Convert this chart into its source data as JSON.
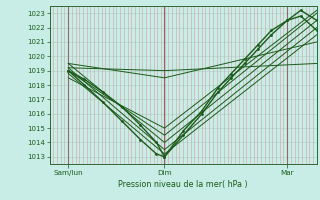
{
  "title": "Pression niveau de la mer( hPa )",
  "bg_color": "#c8ece6",
  "grid_color_v": "#d4a0a0",
  "grid_color_h": "#b0d8d0",
  "line_color": "#1a5c1a",
  "ylim": [
    1012.5,
    1023.5
  ],
  "yticks": [
    1013,
    1014,
    1015,
    1016,
    1017,
    1018,
    1019,
    1020,
    1021,
    1022,
    1023
  ],
  "xtick_labels": [
    "Sam/lun",
    "Dim",
    "Mar"
  ],
  "xtick_positions": [
    0.07,
    0.43,
    0.89
  ],
  "day_vlines": [
    0.07,
    0.43,
    0.89
  ],
  "num_vgrid": 72,
  "lines": [
    {
      "x": [
        0.07,
        0.13,
        0.2,
        0.27,
        0.34,
        0.4,
        0.43,
        0.5,
        0.57,
        0.63,
        0.68,
        0.73,
        0.78,
        0.83,
        0.89,
        0.94,
        1.0
      ],
      "y": [
        1019.0,
        1018.4,
        1017.5,
        1016.5,
        1015.2,
        1014.0,
        1013.0,
        1014.5,
        1016.0,
        1017.5,
        1018.5,
        1019.5,
        1020.5,
        1021.5,
        1022.5,
        1023.2,
        1022.5
      ],
      "lw": 1.0,
      "marker": ".",
      "ms": 2.0
    },
    {
      "x": [
        0.07,
        0.13,
        0.2,
        0.27,
        0.34,
        0.4,
        0.43,
        0.5,
        0.57,
        0.63,
        0.68,
        0.73,
        0.78,
        0.83,
        0.89,
        0.94,
        1.0
      ],
      "y": [
        1019.0,
        1018.0,
        1016.8,
        1015.5,
        1014.2,
        1013.2,
        1013.0,
        1014.8,
        1016.2,
        1017.8,
        1018.8,
        1019.8,
        1020.8,
        1021.8,
        1022.5,
        1022.8,
        1021.8
      ],
      "lw": 1.0,
      "marker": ".",
      "ms": 2.0
    },
    {
      "x": [
        0.07,
        0.43,
        1.0
      ],
      "y": [
        1018.8,
        1013.2,
        1021.5
      ],
      "lw": 0.7,
      "marker": null,
      "ms": 0
    },
    {
      "x": [
        0.07,
        0.43,
        1.0
      ],
      "y": [
        1019.2,
        1013.5,
        1022.0
      ],
      "lw": 0.7,
      "marker": null,
      "ms": 0
    },
    {
      "x": [
        0.07,
        0.43,
        1.0
      ],
      "y": [
        1019.5,
        1014.0,
        1022.5
      ],
      "lw": 0.7,
      "marker": null,
      "ms": 0
    },
    {
      "x": [
        0.07,
        0.43,
        1.0
      ],
      "y": [
        1019.0,
        1014.5,
        1023.0
      ],
      "lw": 0.7,
      "marker": null,
      "ms": 0
    },
    {
      "x": [
        0.07,
        0.43,
        1.0
      ],
      "y": [
        1018.5,
        1015.0,
        1023.2
      ],
      "lw": 0.7,
      "marker": null,
      "ms": 0
    },
    {
      "x": [
        0.07,
        0.43,
        1.0
      ],
      "y": [
        1019.5,
        1018.5,
        1021.0
      ],
      "lw": 0.7,
      "marker": null,
      "ms": 0
    },
    {
      "x": [
        0.07,
        0.43,
        1.0
      ],
      "y": [
        1019.2,
        1019.0,
        1019.5
      ],
      "lw": 0.7,
      "marker": null,
      "ms": 0
    }
  ]
}
